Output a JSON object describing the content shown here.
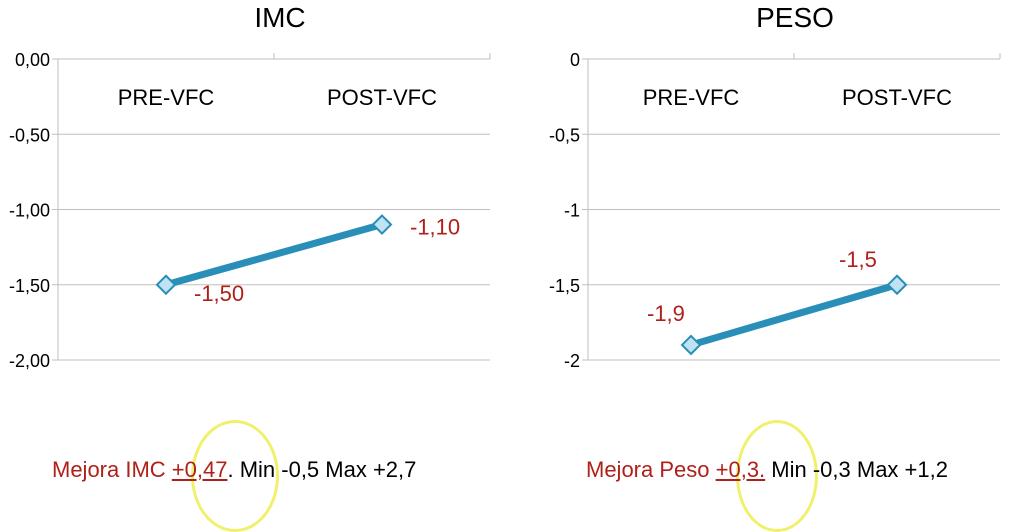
{
  "chart_data": [
    {
      "type": "line",
      "title": "IMC",
      "categories": [
        "PRE-VFC",
        "POST-VFC"
      ],
      "values": [
        -1.5,
        -1.1
      ],
      "data_labels": [
        "-1,50",
        "-1,10"
      ],
      "ylim": [
        -2,
        0
      ],
      "yticks": [
        "0,00",
        "-0,50",
        "-1,00",
        "-1,50",
        "-2,00"
      ],
      "grid": true,
      "categories_position": "top",
      "line_color": "#2a8fb8",
      "label_color": "#b0201a"
    },
    {
      "type": "line",
      "title": "PESO",
      "categories": [
        "PRE-VFC",
        "POST-VFC"
      ],
      "values": [
        -1.9,
        -1.5
      ],
      "data_labels": [
        "-1,9",
        "-1,5"
      ],
      "ylim": [
        -2,
        0
      ],
      "yticks": [
        "0",
        "-0,5",
        "-1",
        "-1,5",
        "-2"
      ],
      "grid": true,
      "categories_position": "top",
      "line_color": "#2a8fb8",
      "label_color": "#b0201a"
    }
  ],
  "notes": {
    "imc": {
      "prefix": "Mejora IMC ",
      "highlight": "+0,47",
      "suffix": ". Min -0,5 Max +2,7"
    },
    "peso": {
      "prefix": "Mejora Peso ",
      "highlight": "+0,3.",
      "suffix": " Min -0,3 Max +1,2"
    }
  },
  "colors": {
    "highlight_ring": "#f1f06a",
    "text_red": "#b0201a",
    "grid": "#bfbfbf"
  }
}
